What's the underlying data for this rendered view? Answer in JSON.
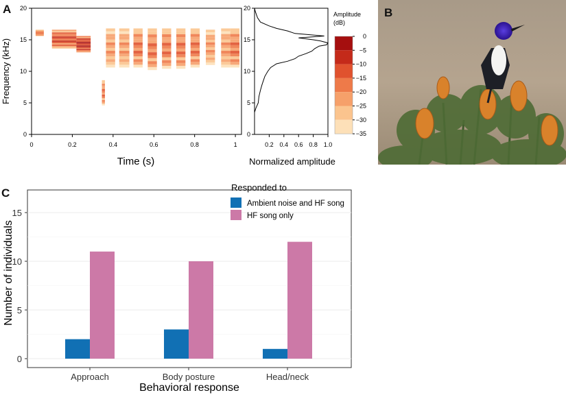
{
  "panels": {
    "a": "A",
    "b": "B",
    "c": "C"
  },
  "colors": {
    "spectrogram": [
      "#fff5e6",
      "#fde0b8",
      "#fbc48e",
      "#f6a06a",
      "#ee7a49",
      "#e0522e",
      "#c42a1a",
      "#a50f0f"
    ],
    "ambient": "#1170b4",
    "hf": "#cc79a7",
    "envelope": "#000000",
    "bird_head": "#3a1fb0",
    "flower": "#d9822b"
  },
  "spectrogram": {
    "ylabel": "Frequency (kHz)",
    "xlabel": "Time (s)",
    "x_ticks": [
      "0",
      "0.2",
      "0.4",
      "0.6",
      "0.8",
      "1"
    ],
    "y_ticks": [
      "0",
      "5",
      "10",
      "15",
      "20"
    ],
    "xlim": [
      0,
      1.03
    ],
    "ylim": [
      0,
      20
    ],
    "notes": [
      {
        "t0": 0.02,
        "t1": 0.06,
        "f0": 15.6,
        "f1": 16.6,
        "level": 4
      },
      {
        "t0": 0.1,
        "t1": 0.22,
        "f0": 13.6,
        "f1": 16.6,
        "level": 5
      },
      {
        "t0": 0.22,
        "t1": 0.29,
        "f0": 13.0,
        "f1": 15.6,
        "level": 6
      },
      {
        "t0": 0.345,
        "t1": 0.36,
        "f0": 4.6,
        "f1": 8.6,
        "level": 4
      },
      {
        "t0": 0.365,
        "t1": 0.41,
        "f0": 10.6,
        "f1": 16.8,
        "level": 3
      },
      {
        "t0": 0.43,
        "t1": 0.48,
        "f0": 10.6,
        "f1": 16.8,
        "level": 3
      },
      {
        "t0": 0.5,
        "t1": 0.545,
        "f0": 10.6,
        "f1": 16.8,
        "level": 4
      },
      {
        "t0": 0.57,
        "t1": 0.615,
        "f0": 10.2,
        "f1": 16.8,
        "level": 4
      },
      {
        "t0": 0.64,
        "t1": 0.685,
        "f0": 10.4,
        "f1": 16.8,
        "level": 4
      },
      {
        "t0": 0.71,
        "t1": 0.755,
        "f0": 10.4,
        "f1": 16.8,
        "level": 4
      },
      {
        "t0": 0.78,
        "t1": 0.825,
        "f0": 10.6,
        "f1": 16.8,
        "level": 4
      },
      {
        "t0": 0.855,
        "t1": 0.9,
        "f0": 11.0,
        "f1": 16.6,
        "level": 3
      },
      {
        "t0": 0.93,
        "t1": 0.975,
        "f0": 10.6,
        "f1": 16.8,
        "level": 3
      },
      {
        "t0": 0.975,
        "t1": 1.02,
        "f0": 10.6,
        "f1": 16.8,
        "level": 4
      }
    ]
  },
  "amplitude": {
    "xlabel": "Normalized amplitude",
    "x_ticks": [
      "0.2",
      "0.4",
      "0.6",
      "0.8",
      "1.0"
    ],
    "y_ticks": [
      "0",
      "5",
      "10",
      "15",
      "20"
    ],
    "xlim": [
      0,
      1.0
    ],
    "ylim": [
      0,
      20
    ],
    "freq": [
      3.5,
      4.2,
      5.0,
      6.0,
      7.0,
      7.8,
      8.5,
      9.2,
      10.0,
      10.6,
      11.2,
      11.6,
      12.0,
      12.4,
      12.8,
      13.2,
      13.6,
      14.0,
      14.2,
      14.5,
      14.8,
      15.0,
      15.3,
      15.6,
      16.0,
      16.4,
      16.8,
      17.2,
      17.8,
      18.5,
      19.5,
      20.0
    ],
    "values": [
      0.0,
      0.02,
      0.05,
      0.06,
      0.08,
      0.1,
      0.12,
      0.14,
      0.18,
      0.22,
      0.3,
      0.45,
      0.55,
      0.6,
      0.7,
      0.78,
      0.82,
      0.88,
      0.98,
      1.0,
      0.9,
      0.8,
      0.6,
      0.95,
      0.55,
      0.45,
      0.3,
      0.2,
      0.08,
      0.04,
      0.01,
      0.0
    ]
  },
  "colorbar": {
    "title_line1": "Amplitude",
    "title_line2": "(dB)",
    "ticks": [
      "0",
      "−5",
      "−10",
      "−15",
      "−20",
      "−25",
      "−30",
      "−35"
    ]
  },
  "chart_data": {
    "type": "bar",
    "legend_title": "Responded to",
    "categories": [
      "Approach",
      "Body posture",
      "Head/neck"
    ],
    "series": [
      {
        "name": "Ambient noise and HF song",
        "values": [
          2,
          3,
          1
        ]
      },
      {
        "name": "HF song only",
        "values": [
          11,
          10,
          12
        ]
      }
    ],
    "xlabel": "Behavioral response",
    "ylabel": "Number of individuals",
    "y_ticks": [
      "0",
      "5",
      "10",
      "15"
    ],
    "ylim": [
      0,
      17.5
    ]
  }
}
